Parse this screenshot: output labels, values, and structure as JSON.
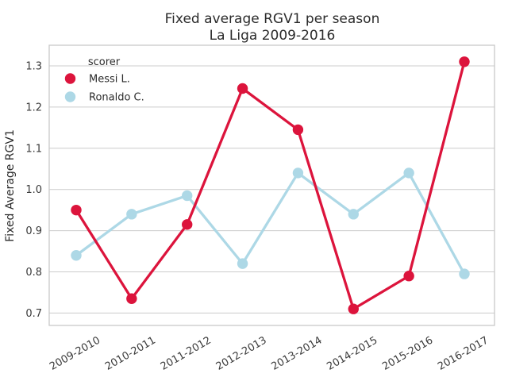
{
  "figure": {
    "title": "Fixed average RGV1 per season",
    "subtitle": "La Liga 2009-2016"
  },
  "chart_data": {
    "type": "line",
    "title": "Fixed average RGV1 per season",
    "subtitle": "La Liga 2009-2016",
    "categories": [
      "2009-2010",
      "2010-2011",
      "2011-2012",
      "2012-2013",
      "2013-2014",
      "2014-2015",
      "2015-2016",
      "2016-2017"
    ],
    "series": [
      {
        "name": "Messi L.",
        "color": "#DC143C",
        "marker": "circle",
        "values": [
          0.95,
          0.735,
          0.915,
          1.245,
          1.145,
          0.71,
          0.79,
          1.31
        ]
      },
      {
        "name": "Ronaldo C.",
        "color": "#ADD8E6",
        "marker": "circle",
        "values": [
          0.84,
          0.94,
          0.985,
          0.82,
          1.04,
          0.94,
          1.04,
          0.795
        ]
      }
    ],
    "xlabel": "",
    "ylabel": "Fixed Average RGV1",
    "ylim": [
      0.67,
      1.35
    ],
    "yticks": [
      0.7,
      0.8,
      0.9,
      1.0,
      1.1,
      1.2,
      1.3
    ],
    "grid": "horizontal",
    "grid_color": "#cccccc",
    "spine_color": "#c8c8c8",
    "legend": {
      "title": "scorer",
      "position": "upper-left"
    },
    "x_tick_rotation_deg": -30
  }
}
